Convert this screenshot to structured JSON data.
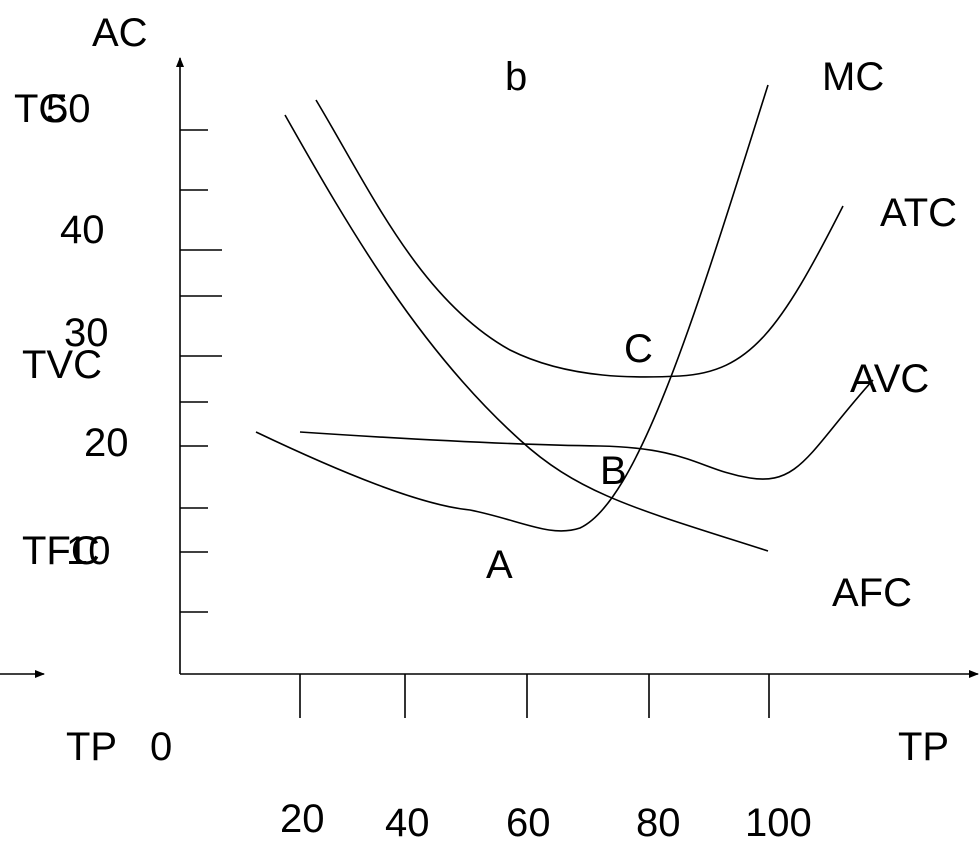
{
  "chart_data": {
    "type": "line",
    "axis_labels": {
      "y_top": "AC",
      "y_tc": "TC",
      "y_tvc": "TVC",
      "y_tfc": "TFC",
      "x_left_tp": "TP",
      "x_origin": "0",
      "x_right_tp": "TP"
    },
    "y_tick_labels": [
      "10",
      "20",
      "30",
      "40",
      "50"
    ],
    "x_tick_labels": [
      "20",
      "40",
      "60",
      "80",
      "100"
    ],
    "point_labels": [
      "A",
      "B",
      "C"
    ],
    "top_label": "b",
    "series": [
      {
        "name": "MC"
      },
      {
        "name": "ATC"
      },
      {
        "name": "AVC"
      },
      {
        "name": "AFC"
      }
    ]
  }
}
